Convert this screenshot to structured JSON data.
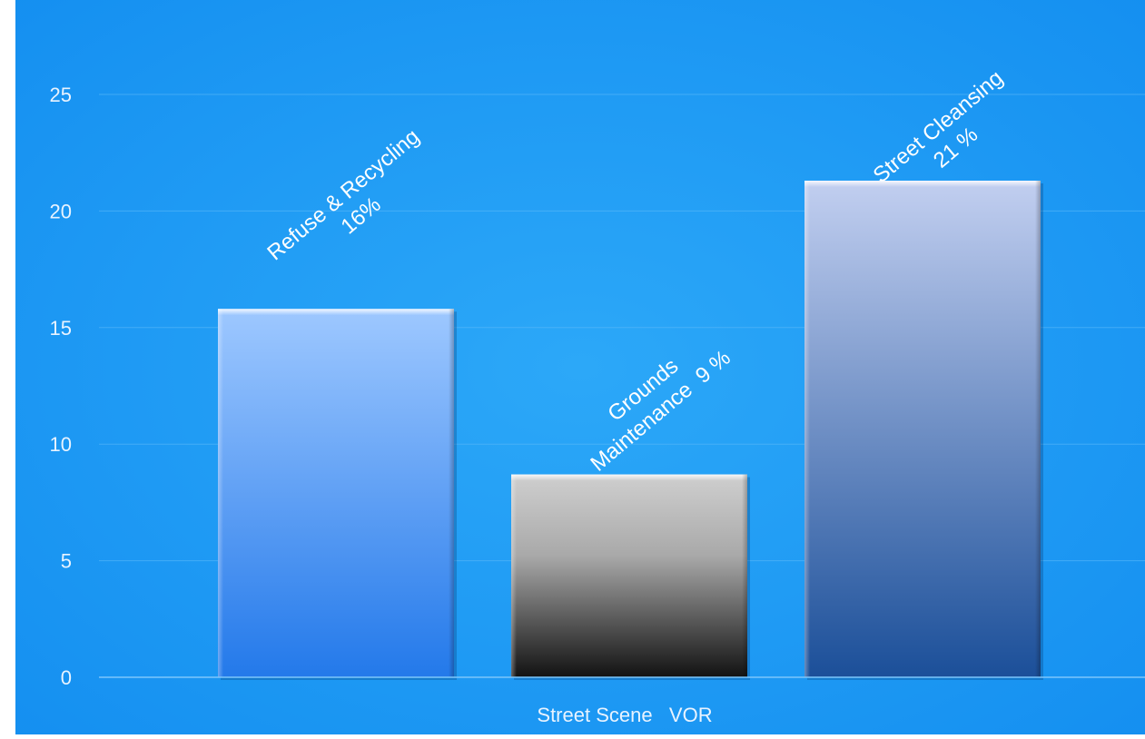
{
  "chart_data": {
    "type": "bar",
    "title": "",
    "xlabel": "",
    "ylabel": "",
    "categories": [
      "Street Scene   VOR"
    ],
    "series": [
      {
        "label_line1": "Refuse & Recycling",
        "label_line2": "16%",
        "value": 15.8,
        "fill": "blue-gradient"
      },
      {
        "label_line1": "Grounds",
        "label_line2": "Maintenance  9 %",
        "value": 8.7,
        "fill": "grey-gradient"
      },
      {
        "label_line1": "Street Cleansing",
        "label_line2": "21 %",
        "value": 21.3,
        "fill": "navy-gradient"
      }
    ],
    "ylim": [
      0,
      25
    ],
    "yticks": [
      "0",
      "5",
      "10",
      "15",
      "20",
      "25"
    ],
    "grid": true,
    "legend": "none"
  },
  "colors": {
    "background_center": "#2aa6f7",
    "background_edge": "#138df0",
    "gridline": "#5cbaf9",
    "axis_text": "#e8f3ff",
    "label_text": "#ffffff"
  }
}
